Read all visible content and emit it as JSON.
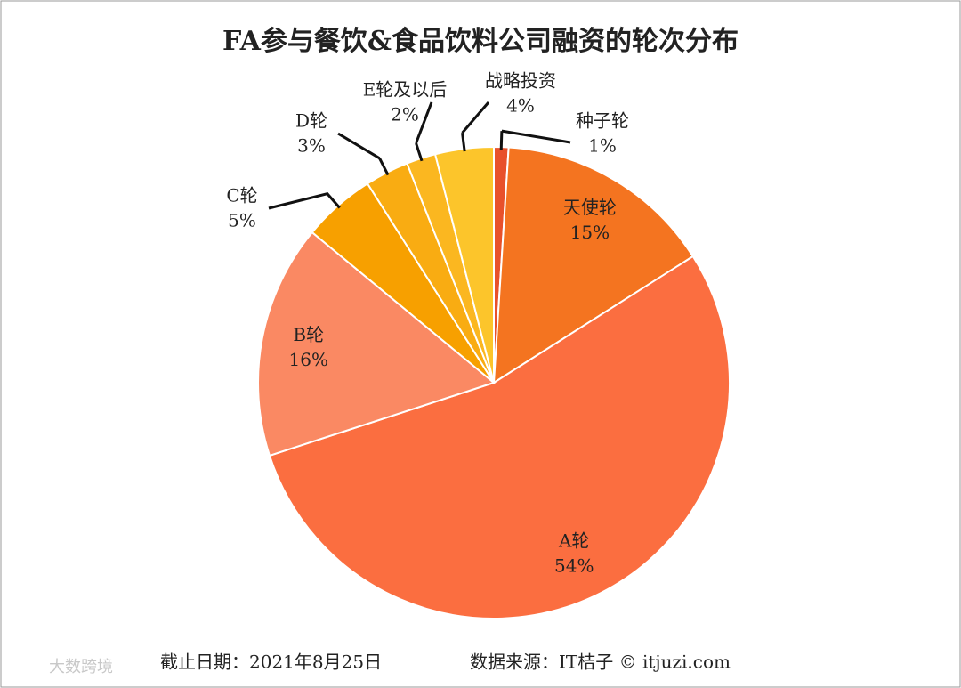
{
  "chart_data": {
    "type": "pie",
    "title": "FA参与餐饮&食品饮料公司融资的轮次分布",
    "categories": [
      "种子轮",
      "天使轮",
      "A轮",
      "B轮",
      "C轮",
      "D轮",
      "E轮及以后",
      "战略投资"
    ],
    "values": [
      1,
      15,
      54,
      16,
      5,
      3,
      2,
      4
    ],
    "value_labels": [
      "1%",
      "15%",
      "54%",
      "16%",
      "5%",
      "3%",
      "2%",
      "4%"
    ],
    "colors": [
      "#e8512b",
      "#f47420",
      "#fb6e40",
      "#fa8963",
      "#f7a000",
      "#f9ac12",
      "#fbb720",
      "#fcc52b"
    ],
    "footnote": "截止日期：2021年8月25日",
    "source": "数据来源：IT桔子 © itjuzi.com",
    "watermark": "大数跨境"
  }
}
